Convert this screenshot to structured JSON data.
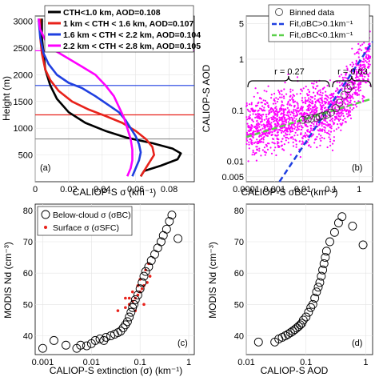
{
  "chart_data": [
    {
      "panel": "(a)",
      "type": "line",
      "xlabel": "CALIOP-S σ (km⁻¹)",
      "ylabel": "Height (m)",
      "xlim": [
        0,
        0.095
      ],
      "ylim": [
        0,
        3100
      ],
      "xticks": [
        0,
        0.02,
        0.04,
        0.06,
        0.08
      ],
      "xtick_labels": [
        "0",
        "0.02",
        "0.04",
        "0.06",
        "0.08"
      ],
      "yticks": [
        500,
        1000,
        1500,
        2000,
        2500,
        3000
      ],
      "ytick_labels": [
        "500",
        "1000",
        "1500",
        "2000",
        "2500",
        "3000"
      ],
      "grid": true,
      "legend_placement": "top-right",
      "series": [
        {
          "name": "CTH<1.0 km, AOD=0.108",
          "color": "#000000",
          "points": [
            [
              0.004,
              3050
            ],
            [
              0.004,
              2700
            ],
            [
              0.005,
              2400
            ],
            [
              0.006,
              2100
            ],
            [
              0.009,
              1800
            ],
            [
              0.013,
              1550
            ],
            [
              0.02,
              1300
            ],
            [
              0.03,
              1100
            ],
            [
              0.042,
              950
            ],
            [
              0.055,
              820
            ],
            [
              0.07,
              720
            ],
            [
              0.082,
              620
            ],
            [
              0.087,
              530
            ],
            [
              0.085,
              420
            ],
            [
              0.075,
              300
            ],
            [
              0.065,
              200
            ],
            [
              0.063,
              100
            ]
          ]
        },
        {
          "name": "1 km < CTH < 1.6 km, AOD=0.107",
          "color": "#e8221b",
          "points": [
            [
              0.003,
              3050
            ],
            [
              0.003,
              2700
            ],
            [
              0.004,
              2400
            ],
            [
              0.006,
              2100
            ],
            [
              0.009,
              1900
            ],
            [
              0.014,
              1700
            ],
            [
              0.022,
              1500
            ],
            [
              0.032,
              1350
            ],
            [
              0.042,
              1230
            ],
            [
              0.052,
              1100
            ],
            [
              0.06,
              950
            ],
            [
              0.066,
              800
            ],
            [
              0.07,
              650
            ],
            [
              0.071,
              500
            ],
            [
              0.068,
              350
            ],
            [
              0.065,
              200
            ],
            [
              0.063,
              100
            ]
          ]
        },
        {
          "name": "1.6 km < CTH < 2.2 km, AOD=0.104",
          "color": "#1f3fe0",
          "points": [
            [
              0.002,
              3050
            ],
            [
              0.003,
              2700
            ],
            [
              0.005,
              2400
            ],
            [
              0.008,
              2200
            ],
            [
              0.013,
              2000
            ],
            [
              0.02,
              1850
            ],
            [
              0.028,
              1750
            ],
            [
              0.036,
              1600
            ],
            [
              0.043,
              1450
            ],
            [
              0.05,
              1300
            ],
            [
              0.054,
              1150
            ],
            [
              0.057,
              1000
            ],
            [
              0.06,
              850
            ],
            [
              0.062,
              700
            ],
            [
              0.063,
              550
            ],
            [
              0.062,
              400
            ],
            [
              0.06,
              250
            ],
            [
              0.058,
              100
            ]
          ]
        },
        {
          "name": "2.2 km < CTH < 2.8 km, AOD=0.105",
          "color": "#ff00ff",
          "points": [
            [
              0.002,
              3050
            ],
            [
              0.003,
              2850
            ],
            [
              0.006,
              2650
            ],
            [
              0.012,
              2450
            ],
            [
              0.02,
              2300
            ],
            [
              0.028,
              2150
            ],
            [
              0.036,
              2000
            ],
            [
              0.042,
              1800
            ],
            [
              0.047,
              1600
            ],
            [
              0.05,
              1400
            ],
            [
              0.053,
              1200
            ],
            [
              0.055,
              1000
            ],
            [
              0.057,
              800
            ],
            [
              0.058,
              600
            ],
            [
              0.058,
              400
            ],
            [
              0.057,
              250
            ],
            [
              0.055,
              100
            ]
          ]
        }
      ],
      "reference_lines": [
        {
          "y": 800,
          "color": "#8c8c8c"
        },
        {
          "y": 1250,
          "color": "#e8221b"
        },
        {
          "y": 1800,
          "color": "#1f3fe0"
        },
        {
          "y": 2450,
          "color": "#ff00ff"
        }
      ]
    },
    {
      "panel": "(b)",
      "type": "scatter",
      "xlabel": "CALIOP-S σBC (km⁻¹)",
      "ylabel": "CALIOP-S AOD",
      "x_scale": "log",
      "y_scale": "log",
      "xlim": [
        0.0001,
        3
      ],
      "ylim": [
        0.004,
        7
      ],
      "xticks": [
        0.0001,
        0.001,
        0.01,
        0.1,
        1
      ],
      "xtick_labels": [
        "0.0001",
        "0.001",
        "0.01",
        "0.1",
        "1"
      ],
      "yticks": [
        0.005,
        0.01,
        0.1,
        1,
        5
      ],
      "ytick_labels": [
        "0.005",
        "0.01",
        "0.1",
        "1",
        "5"
      ],
      "grid": true,
      "legend_placement": "top",
      "legend": [
        "Binned data",
        "Fit,σBC>0.1km⁻¹",
        "Fit,σBC<0.1km⁻¹"
      ],
      "annotations": [
        "r = 0.27",
        "r = 0.63"
      ],
      "binned": [
        [
          0.01,
          0.065
        ],
        [
          0.015,
          0.067
        ],
        [
          0.02,
          0.069
        ],
        [
          0.03,
          0.072
        ],
        [
          0.04,
          0.075
        ],
        [
          0.05,
          0.078
        ],
        [
          0.07,
          0.082
        ],
        [
          0.1,
          0.09
        ],
        [
          0.15,
          0.11
        ],
        [
          0.2,
          0.14
        ],
        [
          0.3,
          0.2
        ],
        [
          0.4,
          0.26
        ],
        [
          0.5,
          0.3
        ]
      ],
      "fit_high": {
        "color": "#1f3fe0",
        "points": [
          [
            0.0015,
            0.004
          ],
          [
            3,
            2.2
          ]
        ]
      },
      "fit_low": {
        "color": "#5bd04a",
        "points": [
          [
            0.0001,
            0.03
          ],
          [
            3,
            0.17
          ]
        ]
      }
    },
    {
      "panel": "(c)",
      "type": "scatter",
      "xlabel": "CALIOP-S extinction (σ) (km⁻¹)",
      "ylabel": "MODIS Nd (cm⁻³)",
      "x_scale": "log",
      "xlim": [
        0.0007,
        1.3
      ],
      "ylim": [
        34,
        82
      ],
      "xticks": [
        0.001,
        0.01,
        0.1,
        1
      ],
      "xtick_labels": [
        "0.001",
        "0.01",
        "0.1",
        "1"
      ],
      "yticks": [
        40,
        50,
        60,
        70,
        80
      ],
      "ytick_labels": [
        "40",
        "50",
        "60",
        "70",
        "80"
      ],
      "grid": true,
      "legend_placement": "top-left",
      "legend": [
        "Below-cloud σ (σBC)",
        "Surface σ (σSFC)"
      ],
      "below_cloud": [
        [
          0.001,
          36
        ],
        [
          0.0017,
          38.5
        ],
        [
          0.003,
          37
        ],
        [
          0.005,
          36
        ],
        [
          0.006,
          37
        ],
        [
          0.008,
          36.8
        ],
        [
          0.01,
          37.5
        ],
        [
          0.012,
          38.5
        ],
        [
          0.015,
          39
        ],
        [
          0.018,
          38.5
        ],
        [
          0.02,
          39.5
        ],
        [
          0.025,
          40
        ],
        [
          0.03,
          40.5
        ],
        [
          0.035,
          41
        ],
        [
          0.04,
          41.5
        ],
        [
          0.045,
          42.5
        ],
        [
          0.05,
          43.5
        ],
        [
          0.055,
          44.5
        ],
        [
          0.06,
          46
        ],
        [
          0.065,
          47.5
        ],
        [
          0.07,
          49
        ],
        [
          0.075,
          50
        ],
        [
          0.08,
          51.5
        ],
        [
          0.09,
          53
        ],
        [
          0.1,
          55
        ],
        [
          0.11,
          57
        ],
        [
          0.12,
          59
        ],
        [
          0.13,
          60.5
        ],
        [
          0.15,
          62
        ],
        [
          0.17,
          64
        ],
        [
          0.2,
          66
        ],
        [
          0.23,
          68
        ],
        [
          0.27,
          70
        ],
        [
          0.3,
          72
        ],
        [
          0.35,
          74
        ],
        [
          0.4,
          76.5
        ],
        [
          0.45,
          78.5
        ],
        [
          0.6,
          71
        ]
      ],
      "surface": [
        [
          0.035,
          48
        ],
        [
          0.05,
          49
        ],
        [
          0.06,
          50
        ],
        [
          0.07,
          51
        ],
        [
          0.08,
          52
        ],
        [
          0.09,
          53
        ],
        [
          0.1,
          54
        ],
        [
          0.11,
          55
        ],
        [
          0.12,
          56
        ],
        [
          0.14,
          57
        ],
        [
          0.16,
          59
        ],
        [
          0.09,
          56
        ],
        [
          0.07,
          54
        ],
        [
          0.06,
          52
        ],
        [
          0.1,
          58
        ],
        [
          0.13,
          61
        ],
        [
          0.15,
          63
        ],
        [
          0.12,
          50
        ],
        [
          0.08,
          48
        ],
        [
          0.05,
          52
        ]
      ]
    },
    {
      "panel": "(d)",
      "type": "scatter",
      "xlabel": "CALIOP-S AOD",
      "ylabel": "MODIS Nd (cm⁻³)",
      "x_scale": "log",
      "xlim": [
        0.01,
        1.3
      ],
      "ylim": [
        34,
        82
      ],
      "xticks": [
        0.01,
        0.1,
        1
      ],
      "xtick_labels": [
        "0.01",
        "0.1",
        "1"
      ],
      "yticks": [
        40,
        50,
        60,
        70,
        80
      ],
      "ytick_labels": [
        "40",
        "50",
        "60",
        "70",
        "80"
      ],
      "grid": true,
      "points": [
        [
          0.016,
          38
        ],
        [
          0.03,
          38
        ],
        [
          0.035,
          39
        ],
        [
          0.04,
          39.5
        ],
        [
          0.045,
          40
        ],
        [
          0.05,
          40.5
        ],
        [
          0.055,
          41
        ],
        [
          0.06,
          41.5
        ],
        [
          0.065,
          42
        ],
        [
          0.07,
          42.5
        ],
        [
          0.075,
          43
        ],
        [
          0.08,
          43.5
        ],
        [
          0.085,
          44
        ],
        [
          0.09,
          45
        ],
        [
          0.1,
          46
        ],
        [
          0.11,
          47.5
        ],
        [
          0.12,
          49
        ],
        [
          0.13,
          50
        ],
        [
          0.14,
          52
        ],
        [
          0.15,
          54
        ],
        [
          0.16,
          55.5
        ],
        [
          0.17,
          57
        ],
        [
          0.18,
          59
        ],
        [
          0.19,
          61
        ],
        [
          0.2,
          63
        ],
        [
          0.21,
          65
        ],
        [
          0.22,
          67
        ],
        [
          0.25,
          70
        ],
        [
          0.3,
          73
        ],
        [
          0.35,
          76
        ],
        [
          0.4,
          78
        ],
        [
          0.6,
          75
        ],
        [
          0.9,
          69
        ]
      ]
    }
  ]
}
